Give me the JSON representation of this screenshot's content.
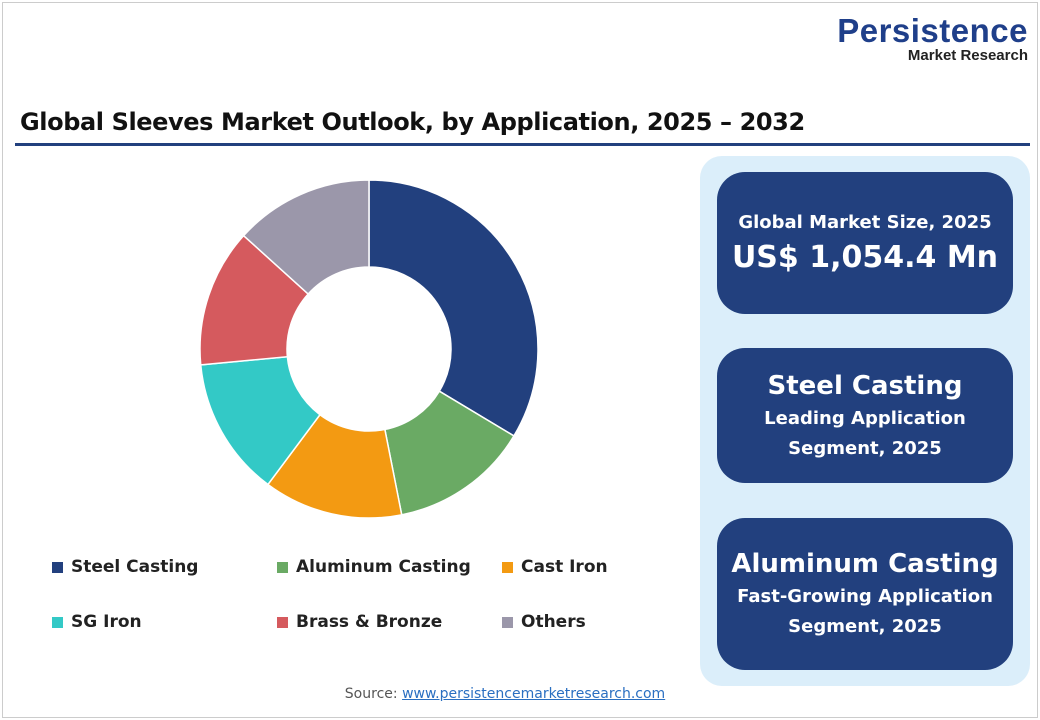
{
  "logo": {
    "line1": "Persistence",
    "line2": "Market Research"
  },
  "title": "Global Sleeves Market Outlook, by Application, 2025 – 2032",
  "chart_data": {
    "type": "pie",
    "donut": true,
    "title": "",
    "categories": [
      "Steel Casting",
      "Aluminum Casting",
      "Cast Iron",
      "SG Iron",
      "Brass & Bronze",
      "Others"
    ],
    "values": [
      33.6,
      13.3,
      13.3,
      13.3,
      13.2,
      13.3
    ],
    "colors": [
      "#22407e",
      "#6aaa64",
      "#f39a12",
      "#33c9c6",
      "#d55a5e",
      "#9b97aa"
    ],
    "legend_position": "bottom"
  },
  "cards": [
    {
      "line1": "Global Market Size, 2025",
      "line2": "US$ 1,054.4 Mn"
    },
    {
      "line1": "Steel Casting",
      "line2": "Leading Application",
      "line3": "Segment, 2025"
    },
    {
      "line1": "Aluminum Casting",
      "line2": "Fast-Growing Application",
      "line3": "Segment, 2025"
    }
  ],
  "source": {
    "label": "Source:",
    "link": "www.persistencemarketresearch.com"
  }
}
